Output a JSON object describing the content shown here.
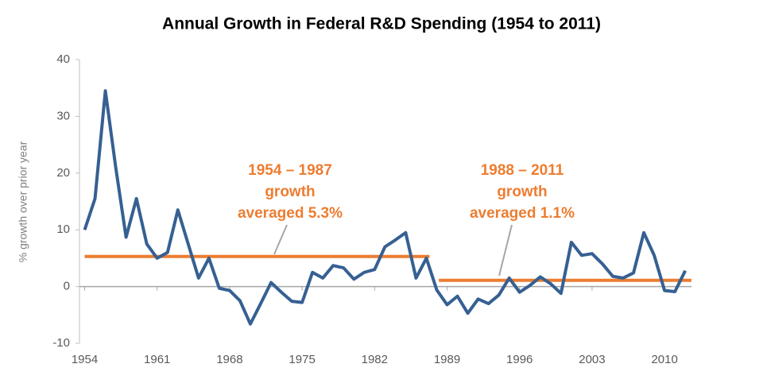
{
  "chart_data": {
    "type": "line",
    "title": "Annual Growth in Federal R&D Spending (1954 to 2011)",
    "y_label": "% growth over prior year",
    "x": [
      1954,
      1955,
      1956,
      1957,
      1958,
      1959,
      1960,
      1961,
      1962,
      1963,
      1964,
      1965,
      1966,
      1967,
      1968,
      1969,
      1970,
      1971,
      1972,
      1973,
      1974,
      1975,
      1976,
      1977,
      1978,
      1979,
      1980,
      1981,
      1982,
      1983,
      1984,
      1985,
      1986,
      1987,
      1988,
      1989,
      1990,
      1991,
      1992,
      1993,
      1994,
      1995,
      1996,
      1997,
      1998,
      1999,
      2000,
      2001,
      2002,
      2003,
      2004,
      2005,
      2006,
      2007,
      2008,
      2009,
      2010,
      2011,
      2012
    ],
    "series": [
      {
        "color": "#366092",
        "values": [
          10,
          15.5,
          34.5,
          21,
          8.7,
          15.5,
          7.5,
          5,
          6,
          13.5,
          7.5,
          1.5,
          5,
          -0.3,
          -0.7,
          -2.5,
          -6.6,
          -3,
          0.7,
          -1,
          -2.6,
          -2.8,
          2.5,
          1.5,
          3.7,
          3.3,
          1.3,
          2.5,
          3,
          7,
          8.2,
          9.5,
          1.5,
          5,
          -0.6,
          -3.2,
          -1.7,
          -4.7,
          -2.2,
          -3,
          -1.5,
          1.5,
          -1,
          0.2,
          1.7,
          0.5,
          -1.2,
          7.8,
          5.5,
          5.8,
          4,
          1.8,
          1.5,
          2.4,
          9.5,
          5.5,
          -0.7,
          -0.9,
          2.8
        ]
      }
    ],
    "averages": [
      {
        "x": [
          1954,
          1987.3
        ],
        "value": 5.3,
        "color": "#ed7d31",
        "label": [
          "1954 – 1987",
          "growth",
          "averaged 5.3%"
        ]
      },
      {
        "x": [
          1988.2,
          2012.6
        ],
        "value": 1.1,
        "color": "#ed7d31",
        "label": [
          "1988 – 2011",
          "growth",
          "averaged 1.1%"
        ]
      }
    ],
    "xlim": [
      1953.5,
      2012.6
    ],
    "xticks": [
      1954,
      1961,
      1968,
      1975,
      1982,
      1989,
      1996,
      2003,
      2010
    ],
    "ylim": [
      -10,
      40
    ],
    "yticks": [
      -10,
      0,
      10,
      20,
      30,
      40
    ]
  }
}
